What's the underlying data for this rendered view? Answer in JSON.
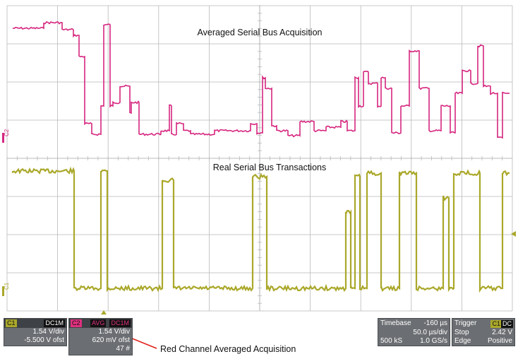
{
  "labels": {
    "top_title": "Averaged Serial Bus Acquisition",
    "bottom_title": "Real Serial Bus Transactions",
    "annotation": "Red Channel Averaged Acquisition"
  },
  "channel_markers": {
    "c1": "C1",
    "c2": "C2"
  },
  "colors": {
    "c1": "#aaa82a",
    "c2": "#d6267f",
    "grid": "#b9b9b9",
    "panel": "#6b6e72",
    "panel_dark": "#3e4145",
    "c2_accent": "#e0307f"
  },
  "c1_box": {
    "name": "C1",
    "coupling": "DC1M",
    "vdiv": "1.54 V/div",
    "offset": "-5.500 V ofst"
  },
  "c2_box": {
    "name": "C2",
    "mode": "AVG",
    "coupling": "DC1M",
    "vdiv": "1.54 V/div",
    "offset": "620 mV ofst",
    "count": "47 #"
  },
  "timebase_box": {
    "label": "Timebase",
    "delay": "-160 µs",
    "tdiv": "50.0 µs/div",
    "samples": "500 kS",
    "rate": "1.0 GS/s"
  },
  "trigger_box": {
    "label": "Trigger",
    "ch": "C1",
    "coupling": "DC",
    "mode": "Stop",
    "level": "2.42 V",
    "type": "Edge",
    "slope": "Positive"
  }
}
